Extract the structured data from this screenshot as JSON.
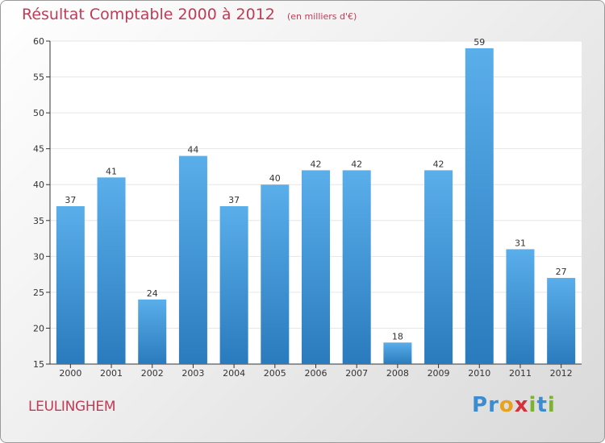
{
  "title": "Résultat Comptable 2000 à 2012",
  "unit_note": "(en milliers d'€)",
  "commune": "LEULINGHEM",
  "logo": {
    "text": "Proxiti",
    "letters": [
      {
        "ch": "P",
        "color": "#3a8dd0"
      },
      {
        "ch": "r",
        "color": "#3a8dd0"
      },
      {
        "ch": "o",
        "color": "#e8a21b"
      },
      {
        "ch": "x",
        "color": "#d6303a"
      },
      {
        "ch": "i",
        "color": "#7ab32e"
      },
      {
        "ch": "t",
        "color": "#3a8dd0"
      },
      {
        "ch": "i",
        "color": "#7ab32e"
      }
    ]
  },
  "colors": {
    "bar_top": "#5aaeea",
    "bar_bottom": "#2a7bbd",
    "title": "#c03b56",
    "grid": "#e6e6e6"
  },
  "chart_data": {
    "type": "bar",
    "title": "Résultat Comptable 2000 à 2012",
    "categories": [
      "2000",
      "2001",
      "2002",
      "2003",
      "2004",
      "2005",
      "2006",
      "2007",
      "2008",
      "2009",
      "2010",
      "2011",
      "2012"
    ],
    "values": [
      37,
      41,
      24,
      44,
      37,
      40,
      42,
      42,
      18,
      42,
      59,
      31,
      27
    ],
    "yticks": [
      15,
      20,
      25,
      30,
      35,
      40,
      45,
      50,
      55,
      60
    ],
    "ylim": [
      15,
      60
    ],
    "xlabel": "",
    "ylabel": "",
    "grid": true,
    "data_labels": true
  }
}
